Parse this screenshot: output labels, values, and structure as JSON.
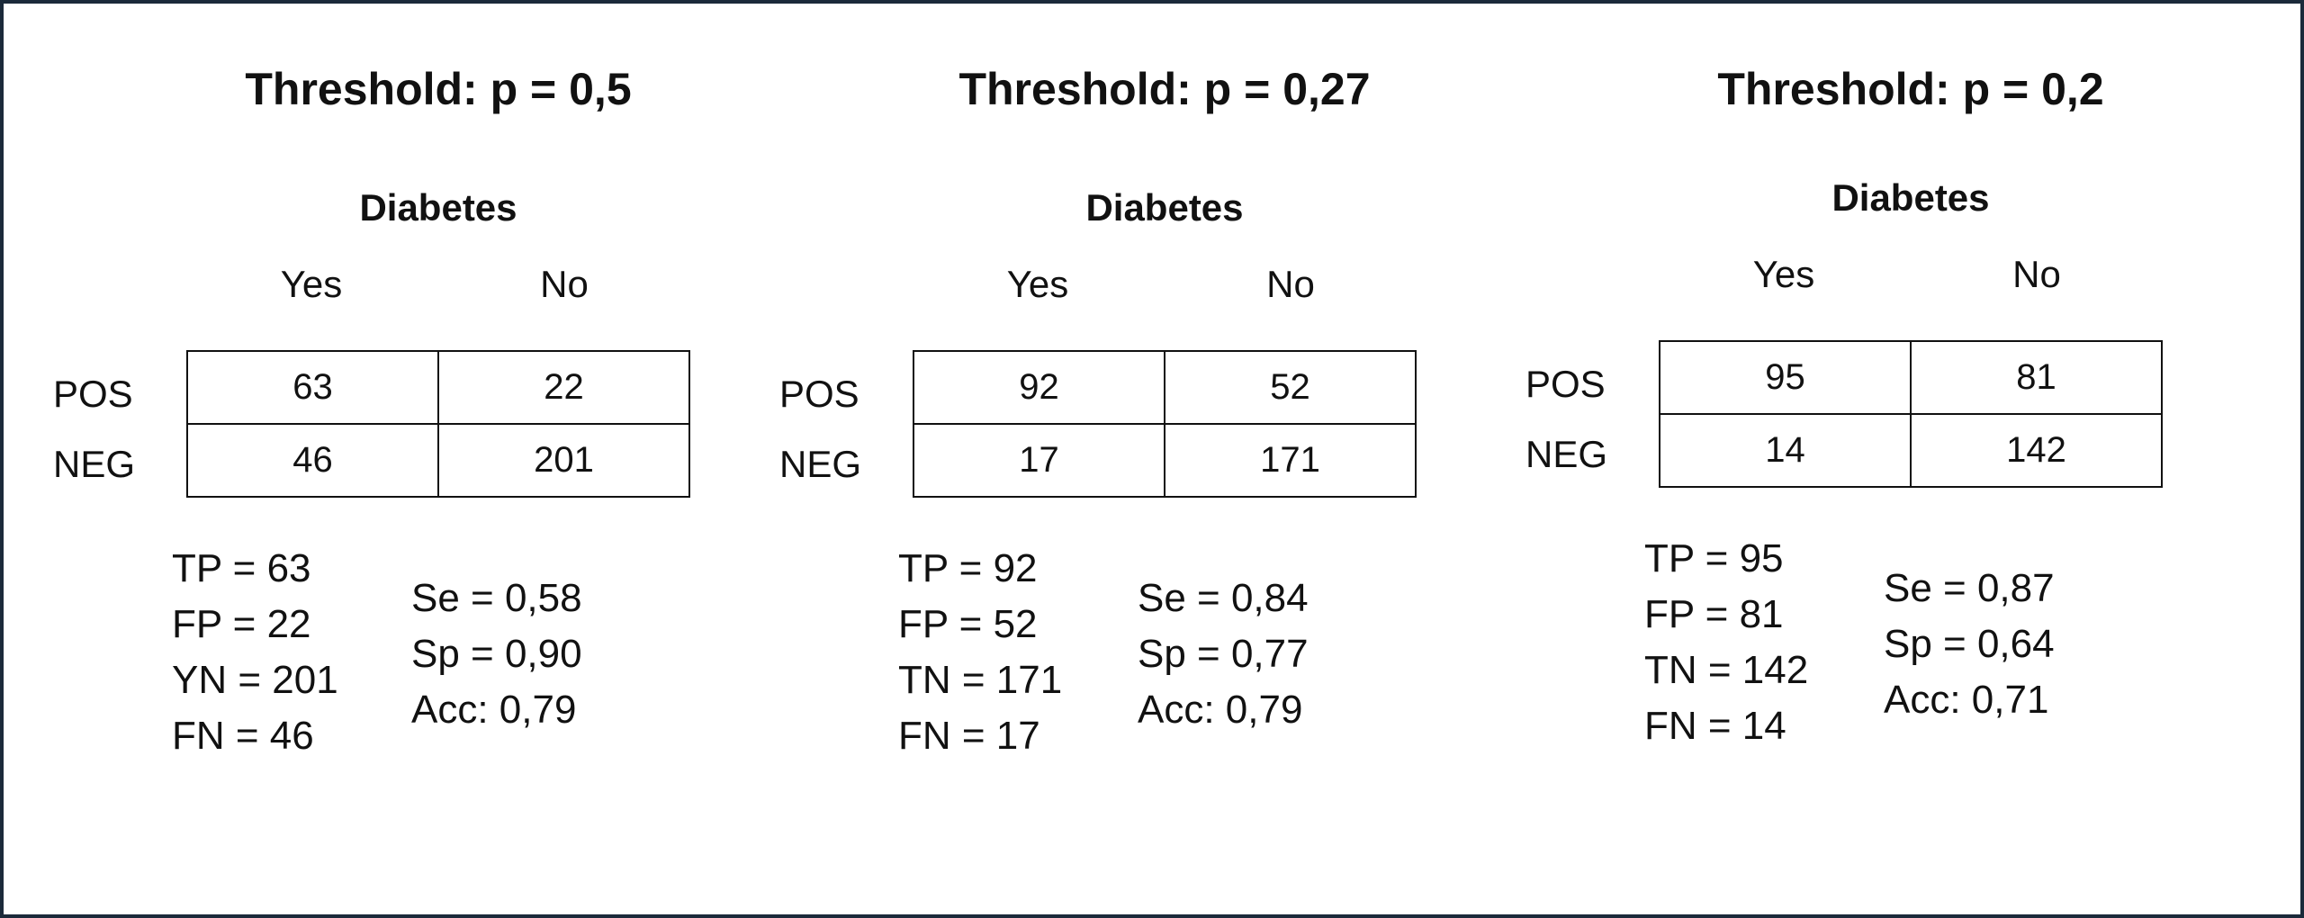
{
  "panels": [
    {
      "title": "Threshold: p = 0,5",
      "outcome_label": "Diabetes",
      "columns": [
        "Yes",
        "No"
      ],
      "rows": [
        {
          "label": "POS",
          "values": [
            "63",
            "22"
          ]
        },
        {
          "label": "NEG",
          "values": [
            "46",
            "201"
          ]
        }
      ],
      "counts": [
        "TP = 63",
        "FP = 22",
        "YN = 201",
        "FN = 46"
      ],
      "metrics": [
        "Se = 0,58",
        "Sp = 0,90",
        "Acc: 0,79"
      ]
    },
    {
      "title": "Threshold: p = 0,27",
      "outcome_label": "Diabetes",
      "columns": [
        "Yes",
        "No"
      ],
      "rows": [
        {
          "label": "POS",
          "values": [
            "92",
            "52"
          ]
        },
        {
          "label": "NEG",
          "values": [
            "17",
            "171"
          ]
        }
      ],
      "counts": [
        "TP = 92",
        "FP = 52",
        "TN = 171",
        "FN = 17"
      ],
      "metrics": [
        "Se = 0,84",
        "Sp = 0,77",
        "Acc: 0,79"
      ]
    },
    {
      "title": "Threshold: p = 0,2",
      "outcome_label": "Diabetes",
      "columns": [
        "Yes",
        "No"
      ],
      "rows": [
        {
          "label": "POS",
          "values": [
            "95",
            "81"
          ]
        },
        {
          "label": "NEG",
          "values": [
            "14",
            "142"
          ]
        }
      ],
      "counts": [
        "TP = 95",
        "FP = 81",
        "TN = 142",
        "FN = 14"
      ],
      "metrics": [
        "Se = 0,87",
        "Sp = 0,64",
        "Acc: 0,71"
      ]
    }
  ],
  "colors": {
    "border": "#1b2a3a",
    "text": "#111111",
    "background": "#ffffff"
  }
}
